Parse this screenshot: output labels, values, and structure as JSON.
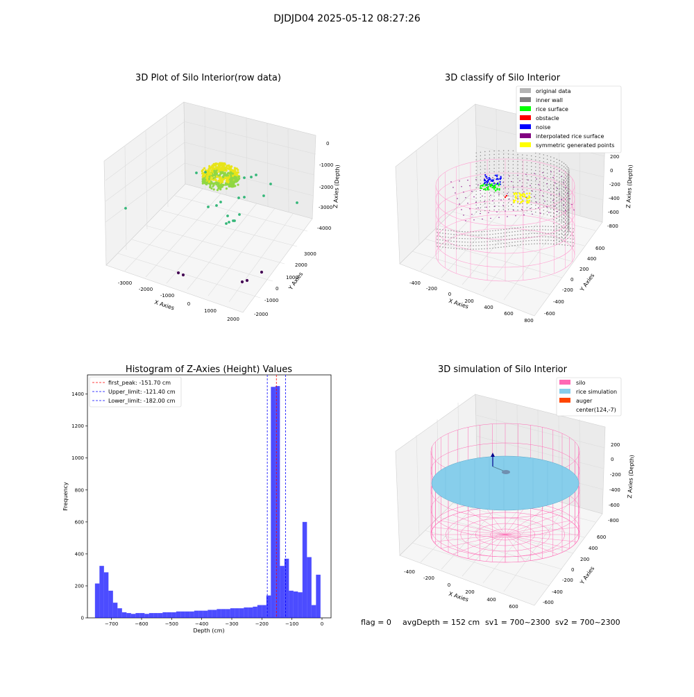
{
  "figure": {
    "suptitle": "DJDJD04 2025-05-12 08:27:26",
    "status_line": {
      "flag": "flag = 0",
      "avg": "avgDepth = 152 cm",
      "sv1": "sv1 = 700~2300",
      "sv2": "sv2 = 700~2300"
    }
  },
  "chart_data": [
    {
      "type": "scatter3d",
      "title": "3D Plot of Silo Interior(row data)",
      "xlabel": "X Axies",
      "ylabel": "Y Axies",
      "zlabel": "Z Axies (Depth)",
      "x_ticks": [
        "-3000",
        "-2000",
        "-1000",
        "0",
        "1000",
        "2000"
      ],
      "y_ticks": [
        "-2000",
        "-1000",
        "0",
        "1000",
        "2000",
        "3000"
      ],
      "z_ticks": [
        "0",
        "-1000",
        "-2000",
        "-3000",
        "-4000"
      ],
      "colors": {
        "high": "#e8e419",
        "mid": "#35b779",
        "low": "#440154"
      }
    },
    {
      "type": "scatter3d",
      "title": "3D classify of Silo Interior",
      "xlabel": "X Axies",
      "ylabel": "Y Axies",
      "zlabel": "Z Axies (Depth)",
      "x_ticks": [
        "-400",
        "-200",
        "0",
        "200",
        "400",
        "600",
        "800"
      ],
      "y_ticks": [
        "-600",
        "-400",
        "-200",
        "0",
        "200",
        "400",
        "600"
      ],
      "z_ticks": [
        "200",
        "0",
        "-200",
        "-400",
        "-600",
        "-800"
      ],
      "legend": [
        {
          "label": "original data",
          "color": "#b3b3b3"
        },
        {
          "label": "inner wall",
          "color": "#808080"
        },
        {
          "label": "rice surface",
          "color": "#00ff00"
        },
        {
          "label": "obstacle",
          "color": "#ff0000"
        },
        {
          "label": "noise",
          "color": "#0000ff"
        },
        {
          "label": "interpolated rice surface",
          "color": "#800080"
        },
        {
          "label": "symmetric generated points",
          "color": "#ffff00"
        }
      ],
      "legend_loc": "upper right"
    },
    {
      "type": "bar",
      "title": "Histogram of Z-Axies (Height) Values",
      "xlabel": "Depth (cm)",
      "ylabel": "Frequency",
      "xlim": [
        -780,
        30
      ],
      "ylim": [
        0,
        1520
      ],
      "bin_width": 15,
      "bin_start": -755,
      "values": [
        215,
        325,
        285,
        170,
        95,
        60,
        35,
        30,
        25,
        30,
        30,
        25,
        30,
        30,
        30,
        35,
        35,
        35,
        40,
        40,
        40,
        40,
        45,
        45,
        45,
        50,
        50,
        55,
        55,
        55,
        60,
        60,
        60,
        65,
        65,
        70,
        80,
        80,
        140,
        1445,
        1450,
        325,
        370,
        170,
        165,
        160,
        600,
        380,
        80,
        270
      ],
      "bar_color": "#0000ff",
      "x_ticks": [
        -700,
        -600,
        -500,
        -400,
        -300,
        -200,
        -100,
        0
      ],
      "x_tick_labels": [
        "−700",
        "−600",
        "−500",
        "−400",
        "−300",
        "−200",
        "−100",
        "0"
      ],
      "y_ticks": [
        0,
        200,
        400,
        600,
        800,
        1000,
        1200,
        1400
      ],
      "y_tick_labels": [
        "0",
        "200",
        "400",
        "600",
        "800",
        "1000",
        "1200",
        "1400"
      ],
      "vlines": [
        {
          "label": "first_peak: -151.70 cm",
          "x": -151.7,
          "color": "#ff0000"
        },
        {
          "label": "Upper_limit: -121.40 cm",
          "x": -121.4,
          "color": "#0000ff"
        },
        {
          "label": "Lower_limit: -182.00 cm",
          "x": -182.0,
          "color": "#0000ff"
        }
      ],
      "legend_loc": "upper left"
    },
    {
      "type": "surface3d",
      "title": "3D simulation of Silo Interior",
      "xlabel": "X Axies",
      "ylabel": "Y Axies",
      "zlabel": "Z Axies (Depth)",
      "x_ticks": [
        "-400",
        "-200",
        "0",
        "200",
        "400",
        "600"
      ],
      "y_ticks": [
        "-600",
        "-400",
        "-200",
        "0",
        "200",
        "400",
        "600"
      ],
      "z_ticks": [
        "200",
        "0",
        "-200",
        "-400",
        "-600",
        "-800"
      ],
      "legend": [
        {
          "label": "silo",
          "color": "#ff69b4"
        },
        {
          "label": "rice simulation",
          "color": "#87ceeb"
        },
        {
          "label": "auger",
          "color": "#ff4500"
        },
        {
          "label": "center(124,-7)",
          "color": ""
        }
      ],
      "legend_loc": "upper right"
    }
  ]
}
